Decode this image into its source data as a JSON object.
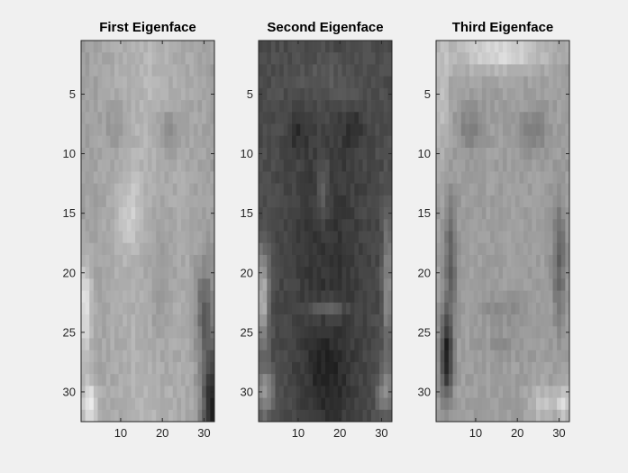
{
  "window": {
    "background": "#f0f0f0"
  },
  "chart_data": [
    {
      "type": "heatmap",
      "title": "First Eigenface",
      "colormap": "gray",
      "rows": 32,
      "cols": 32,
      "xlim": [
        0.5,
        32.5
      ],
      "ylim": [
        0.5,
        32.5
      ],
      "y_reversed": true,
      "xticks": [
        10,
        20,
        30
      ],
      "yticks": [
        5,
        10,
        15,
        20,
        25,
        30
      ],
      "grid": false,
      "face_profile": "first"
    },
    {
      "type": "heatmap",
      "title": "Second Eigenface",
      "colormap": "gray",
      "rows": 32,
      "cols": 32,
      "xlim": [
        0.5,
        32.5
      ],
      "ylim": [
        0.5,
        32.5
      ],
      "y_reversed": true,
      "xticks": [
        10,
        20,
        30
      ],
      "yticks": [
        5,
        10,
        15,
        20,
        25,
        30
      ],
      "grid": false,
      "face_profile": "second"
    },
    {
      "type": "heatmap",
      "title": "Third Eigenface",
      "colormap": "gray",
      "rows": 32,
      "cols": 32,
      "xlim": [
        0.5,
        32.5
      ],
      "ylim": [
        0.5,
        32.5
      ],
      "y_reversed": true,
      "xticks": [
        10,
        20,
        30
      ],
      "yticks": [
        5,
        10,
        15,
        20,
        25,
        30
      ],
      "grid": false,
      "face_profile": "third"
    }
  ]
}
